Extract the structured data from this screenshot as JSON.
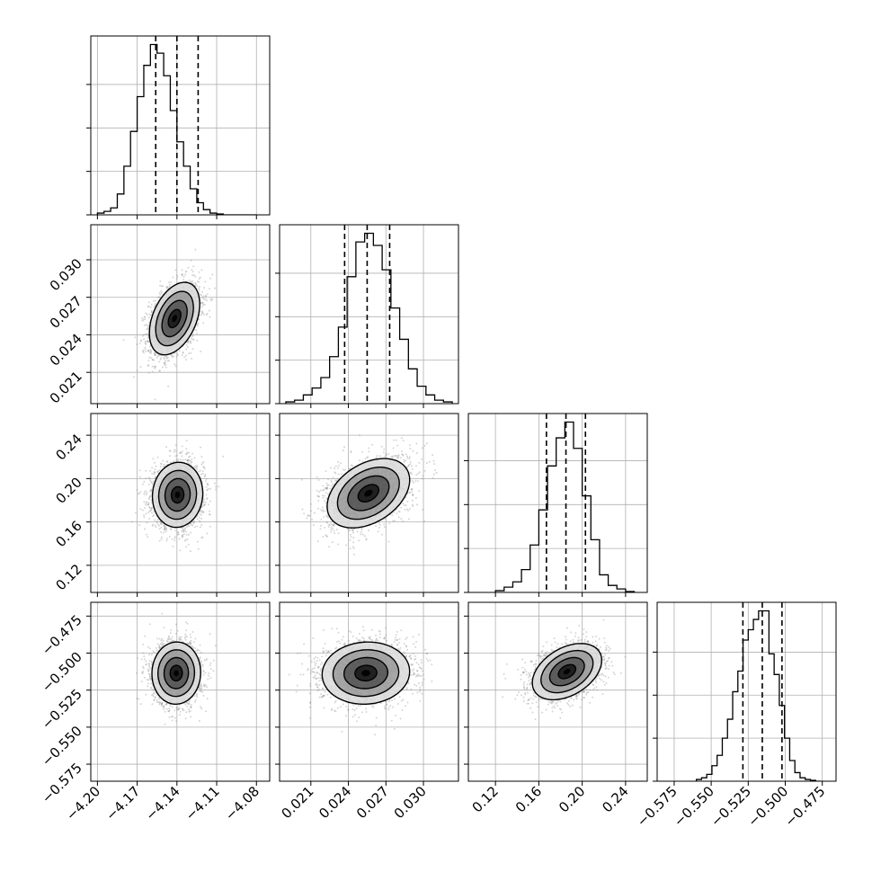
{
  "chart_data": {
    "type": "corner",
    "title": "",
    "parameters": [
      {
        "range": [
          -4.205,
          -4.07
        ],
        "ticks": [
          -4.2,
          -4.17,
          -4.14,
          -4.11,
          -4.08
        ],
        "tick_labels": [
          "−4.20",
          "−4.17",
          "−4.14",
          "−4.11",
          "−4.08"
        ],
        "quantiles": [
          -4.156,
          -4.14,
          -4.124
        ],
        "hist_edges": [
          -4.2,
          -4.195,
          -4.19,
          -4.185,
          -4.18,
          -4.175,
          -4.17,
          -4.165,
          -4.16,
          -4.155,
          -4.15,
          -4.145,
          -4.14,
          -4.135,
          -4.13,
          -4.125,
          -4.12,
          -4.115,
          -4.11,
          -4.105,
          -4.1,
          -4.095,
          -4.09,
          -4.085,
          -4.08
        ],
        "hist_counts": [
          0.01,
          0.02,
          0.04,
          0.12,
          0.28,
          0.48,
          0.68,
          0.86,
          0.98,
          0.93,
          0.8,
          0.6,
          0.42,
          0.28,
          0.15,
          0.07,
          0.03,
          0.01,
          0.005,
          0,
          0,
          0,
          0,
          0
        ],
        "hist_yticks": [
          0.0,
          0.25,
          0.5,
          0.75
        ]
      },
      {
        "range": [
          0.0185,
          0.0328
        ],
        "ticks": [
          0.021,
          0.024,
          0.027,
          0.03
        ],
        "tick_labels": [
          "0.021",
          "0.024",
          "0.027",
          "0.030"
        ],
        "quantiles": [
          0.0237,
          0.0255,
          0.0273
        ],
        "hist_edges": [
          0.019,
          0.0197,
          0.0204,
          0.0211,
          0.0218,
          0.0225,
          0.0232,
          0.0239,
          0.0246,
          0.0253,
          0.026,
          0.0267,
          0.0274,
          0.0281,
          0.0288,
          0.0295,
          0.0302,
          0.0309,
          0.0316,
          0.0323
        ],
        "hist_counts": [
          0.01,
          0.02,
          0.05,
          0.09,
          0.15,
          0.27,
          0.44,
          0.73,
          0.93,
          0.98,
          0.91,
          0.77,
          0.55,
          0.37,
          0.2,
          0.1,
          0.05,
          0.02,
          0.01
        ],
        "hist_yticks": [
          0.0,
          0.25,
          0.5,
          0.75
        ]
      },
      {
        "range": [
          0.095,
          0.26
        ],
        "ticks": [
          0.12,
          0.16,
          0.2,
          0.24
        ],
        "tick_labels": [
          "0.12",
          "0.16",
          "0.20",
          "0.24"
        ],
        "quantiles": [
          0.167,
          0.185,
          0.203
        ],
        "hist_edges": [
          0.12,
          0.128,
          0.136,
          0.144,
          0.152,
          0.16,
          0.168,
          0.176,
          0.184,
          0.192,
          0.2,
          0.208,
          0.216,
          0.224,
          0.232,
          0.24,
          0.248
        ],
        "hist_counts": [
          0.01,
          0.03,
          0.06,
          0.13,
          0.27,
          0.47,
          0.72,
          0.88,
          0.97,
          0.82,
          0.55,
          0.3,
          0.1,
          0.04,
          0.02,
          0.005
        ],
        "hist_yticks": [
          0.0,
          0.25,
          0.5,
          0.75
        ]
      },
      {
        "range": [
          -0.5865,
          -0.4657
        ],
        "ticks": [
          -0.575,
          -0.55,
          -0.525,
          -0.5,
          -0.475
        ],
        "tick_labels": [
          "−0.575",
          "−0.550",
          "−0.525",
          "−0.500",
          "−0.475"
        ],
        "quantiles": [
          -0.5286,
          -0.5155,
          -0.5022
        ],
        "hist_edges": [
          -0.56,
          -0.5565,
          -0.553,
          -0.5495,
          -0.546,
          -0.5425,
          -0.539,
          -0.5355,
          -0.532,
          -0.5285,
          -0.525,
          -0.5215,
          -0.518,
          -0.5145,
          -0.511,
          -0.5075,
          -0.504,
          -0.5005,
          -0.497,
          -0.4935,
          -0.49,
          -0.4865,
          -0.483,
          -0.4795,
          -0.476
        ],
        "hist_counts": [
          0.01,
          0.02,
          0.04,
          0.09,
          0.15,
          0.25,
          0.36,
          0.52,
          0.64,
          0.82,
          0.88,
          0.94,
          0.99,
          0.99,
          0.74,
          0.62,
          0.44,
          0.25,
          0.12,
          0.05,
          0.02,
          0.01,
          0.005,
          0
        ],
        "hist_yticks": [
          0.0,
          0.25,
          0.5,
          0.75
        ]
      }
    ],
    "pairs": [
      {
        "x": 0,
        "y": 1,
        "mean": [
          -4.1418,
          0.0253
        ],
        "sd": [
          0.0095,
          0.00145
        ],
        "corr": 0.4
      },
      {
        "x": 0,
        "y": 2,
        "mean": [
          -4.1395,
          0.185
        ],
        "sd": [
          0.0095,
          0.015
        ],
        "corr": 0.05
      },
      {
        "x": 1,
        "y": 2,
        "mean": [
          0.0256,
          0.1865
        ],
        "sd": [
          0.00165,
          0.016
        ],
        "corr": 0.38
      },
      {
        "x": 0,
        "y": 3,
        "mean": [
          -4.1405,
          -0.5135
        ],
        "sd": [
          0.0092,
          0.0105
        ],
        "corr": 0.02
      },
      {
        "x": 1,
        "y": 3,
        "mean": [
          0.0254,
          -0.5135
        ],
        "sd": [
          0.00175,
          0.0105
        ],
        "corr": 0.05
      },
      {
        "x": 2,
        "y": 3,
        "mean": [
          0.186,
          -0.5125
        ],
        "sd": [
          0.016,
          0.0095
        ],
        "corr": 0.4
      }
    ],
    "grid": true,
    "contour_levels_sigma": [
      0.5,
      1.0,
      1.5,
      2.0
    ],
    "colors": {
      "line": "#000000",
      "grid": "#b0b0b0",
      "points": "#8a8a8a",
      "density": "#000000"
    }
  }
}
